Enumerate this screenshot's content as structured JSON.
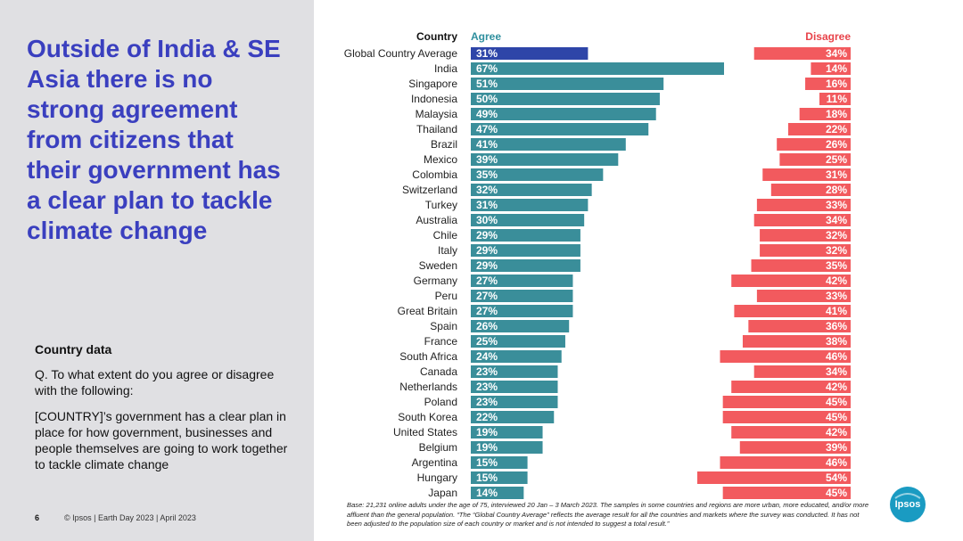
{
  "headline": "Outside of India & SE Asia there is no strong agreement from citizens that their government has a clear plan to tackle climate change",
  "info": {
    "title": "Country data",
    "question": "Q. To what extent do you agree or disagree with the following:",
    "statement": "[COUNTRY]’s government has a clear plan in place for how government, businesses and people themselves are going to work together to tackle climate change"
  },
  "footer": {
    "page_number": "6",
    "copyright": "© Ipsos | Earth Day 2023 | April 2023"
  },
  "base_note": "Base: 21,231 online adults under the age of 75, interviewed 20 Jan – 3 March 2023. The samples in some countries and regions are more urban, more educated, and/or more affluent than the general population. “The “Global Country Average” reflects the average result for all the countries and markets where the survey was conducted. It has not been adjusted to the population size of each country or market and is not intended to suggest a total result.”",
  "logo": {
    "text": "Ipsos",
    "color": "#1a9bc2"
  },
  "colors": {
    "headline": "#3a3fbf",
    "agree": "#3a8e9a",
    "agree_highlight": "#2e45a8",
    "disagree": "#f25a5e",
    "agree_header": "#2e8f9e",
    "disagree_header": "#e8434a"
  },
  "chart_data": {
    "type": "bar",
    "title": "",
    "column_headers": {
      "country": "Country",
      "agree": "Agree",
      "disagree": "Disagree"
    },
    "categories": [
      "Global Country Average",
      "India",
      "Singapore",
      "Indonesia",
      "Malaysia",
      "Thailand",
      "Brazil",
      "Mexico",
      "Colombia",
      "Switzerland",
      "Turkey",
      "Australia",
      "Chile",
      "Italy",
      "Sweden",
      "Germany",
      "Peru",
      "Great Britain",
      "Spain",
      "France",
      "South Africa",
      "Canada",
      "Netherlands",
      "Poland",
      "South Korea",
      "United States",
      "Belgium",
      "Argentina",
      "Hungary",
      "Japan"
    ],
    "series": [
      {
        "name": "Agree",
        "unit": "%",
        "values": [
          31,
          67,
          51,
          50,
          49,
          47,
          41,
          39,
          35,
          32,
          31,
          30,
          29,
          29,
          29,
          27,
          27,
          27,
          26,
          25,
          24,
          23,
          23,
          23,
          22,
          19,
          19,
          15,
          15,
          14
        ]
      },
      {
        "name": "Disagree",
        "unit": "%",
        "values": [
          34,
          14,
          16,
          11,
          18,
          22,
          26,
          25,
          31,
          28,
          33,
          34,
          32,
          32,
          35,
          42,
          33,
          41,
          36,
          38,
          46,
          34,
          42,
          45,
          45,
          42,
          39,
          46,
          54,
          45
        ]
      }
    ],
    "highlight_index": 0,
    "xlim": [
      0,
      100
    ]
  }
}
